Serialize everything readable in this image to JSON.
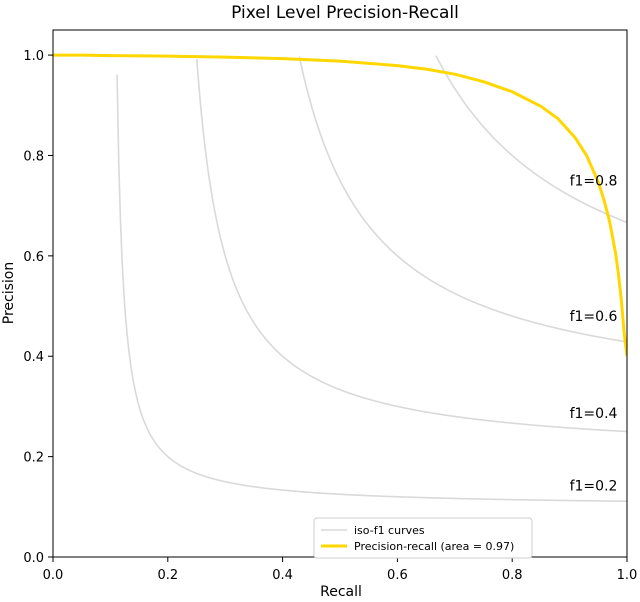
{
  "chart_data": {
    "type": "line",
    "title": "Pixel Level Precision-Recall",
    "xlabel": "Recall",
    "ylabel": "Precision",
    "xlim": [
      0.0,
      1.0
    ],
    "ylim": [
      0.0,
      1.05
    ],
    "xticks": [
      "0.0",
      "0.2",
      "0.4",
      "0.6",
      "0.8",
      "1.0"
    ],
    "yticks": [
      "0.0",
      "0.2",
      "0.4",
      "0.6",
      "0.8",
      "1.0"
    ],
    "grid": false,
    "legend": {
      "placement": "bottom-center",
      "entries": [
        "iso-f1 curves",
        "Precision-recall (area = 0.97)"
      ]
    },
    "iso_f1": {
      "color": "#d9d9d9",
      "levels": [
        0.2,
        0.4,
        0.6,
        0.8
      ],
      "labels": [
        "f1=0.2",
        "f1=0.4",
        "f1=0.6",
        "f1=0.8"
      ]
    },
    "series": [
      {
        "name": "Precision-recall (area = 0.97)",
        "color": "#ffd700",
        "x": [
          0.0,
          0.05,
          0.1,
          0.2,
          0.3,
          0.4,
          0.5,
          0.6,
          0.65,
          0.7,
          0.75,
          0.8,
          0.85,
          0.88,
          0.91,
          0.93,
          0.95,
          0.96,
          0.97,
          0.98,
          0.985,
          0.99,
          0.995,
          1.0
        ],
        "y": [
          1.0,
          1.0,
          0.999,
          0.998,
          0.996,
          0.993,
          0.988,
          0.979,
          0.972,
          0.962,
          0.947,
          0.927,
          0.898,
          0.873,
          0.835,
          0.799,
          0.747,
          0.711,
          0.667,
          0.606,
          0.565,
          0.513,
          0.447,
          0.4
        ]
      }
    ]
  }
}
